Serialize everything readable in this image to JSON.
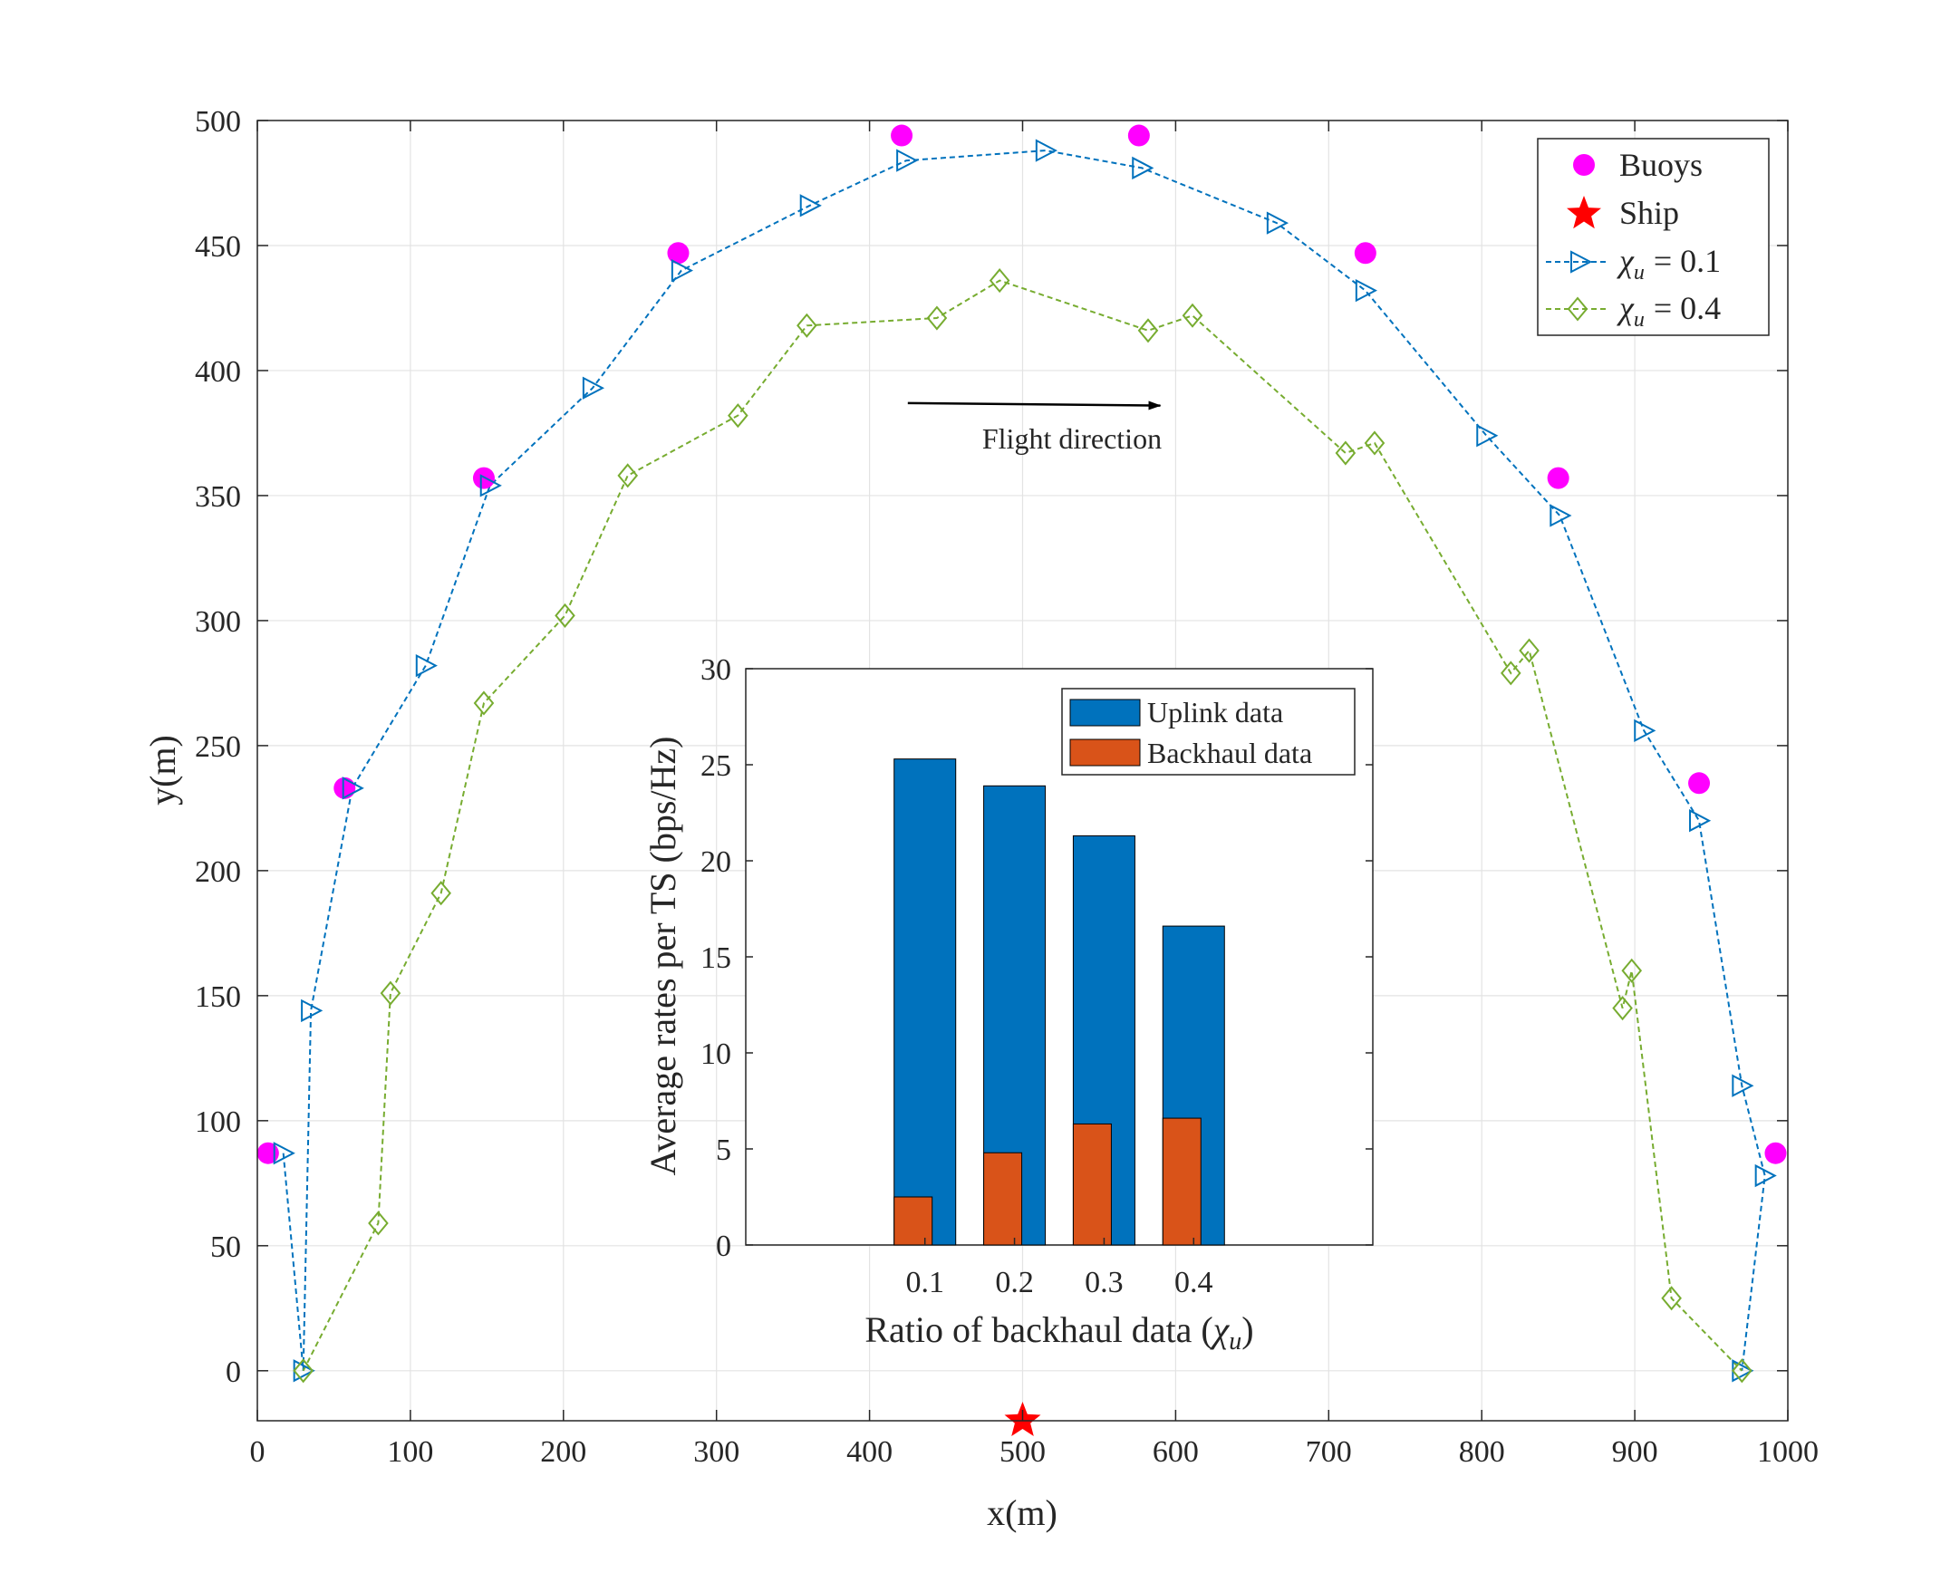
{
  "chart_data": [
    {
      "type": "scatter",
      "xlabel": "x(m)",
      "ylabel": "y(m)",
      "xlim": [
        0,
        1000
      ],
      "ylim": [
        -20,
        500
      ],
      "xticks": [
        0,
        100,
        200,
        300,
        400,
        500,
        600,
        700,
        800,
        900,
        1000
      ],
      "yticks": [
        0,
        50,
        100,
        150,
        200,
        250,
        300,
        350,
        400,
        450,
        500
      ],
      "grid": true,
      "legend_position": "top-right",
      "annotation": {
        "text": "Flight direction",
        "arrow_from": [
          425,
          387
        ],
        "arrow_to": [
          590,
          386
        ]
      },
      "series": [
        {
          "name": "Buoys",
          "kind": "points",
          "marker": "circle",
          "color": "#ff00ff",
          "x": [
            7,
            57,
            148,
            275,
            421,
            576,
            724,
            850,
            942,
            992
          ],
          "y": [
            87,
            233,
            357,
            447,
            494,
            494,
            447,
            357,
            235,
            87
          ]
        },
        {
          "name": "Ship",
          "kind": "points",
          "marker": "star",
          "color": "#ff0000",
          "x": [
            500
          ],
          "y": [
            -20
          ]
        },
        {
          "name": "χu = 0.1",
          "legend_symbol": "χ",
          "legend_subscript": "u",
          "legend_value": "= 0.1",
          "kind": "line",
          "marker": "triangle-right",
          "color": "#0072bd",
          "x": [
            17,
            30,
            35,
            62,
            110,
            152,
            219,
            277,
            361,
            424,
            515,
            578,
            666,
            724,
            803,
            851,
            906,
            942,
            970,
            985,
            970
          ],
          "y": [
            87,
            0,
            144,
            233,
            282,
            354,
            393,
            440,
            466,
            484,
            488,
            481,
            459,
            432,
            374,
            342,
            256,
            220,
            114,
            78,
            0
          ]
        },
        {
          "name": "χu = 0.4",
          "legend_symbol": "χ",
          "legend_subscript": "u",
          "legend_value": "= 0.4",
          "kind": "line",
          "marker": "diamond",
          "color": "#77ac30",
          "x": [
            30,
            79,
            87,
            120,
            148,
            201,
            242,
            314,
            359,
            444,
            485,
            582,
            611,
            711,
            730,
            819,
            831,
            892,
            898,
            924,
            970
          ],
          "y": [
            0,
            59,
            151,
            191,
            267,
            302,
            358,
            382,
            418,
            421,
            436,
            416,
            422,
            367,
            371,
            279,
            288,
            145,
            160,
            29,
            0
          ]
        }
      ]
    },
    {
      "type": "bar",
      "inset": true,
      "xlabel": "Ratio of backhaul data (χu)",
      "xlabel_text": "Ratio of backhaul data (",
      "xlabel_symbol": "χ",
      "xlabel_subscript": "u",
      "xlabel_close": ")",
      "ylabel": "Average rates per TS (bps/Hz)",
      "categories": [
        "0.1",
        "0.2",
        "0.3",
        "0.4"
      ],
      "ylim": [
        0,
        30
      ],
      "yticks": [
        0,
        5,
        10,
        15,
        20,
        25,
        30
      ],
      "grid": false,
      "legend_position": "top-right",
      "series": [
        {
          "name": "Uplink data",
          "color": "#0072bd",
          "values": [
            25.3,
            23.9,
            21.3,
            16.6
          ]
        },
        {
          "name": "Backhaul data",
          "color": "#d95319",
          "values": [
            2.5,
            4.8,
            6.3,
            6.6
          ]
        }
      ]
    }
  ]
}
